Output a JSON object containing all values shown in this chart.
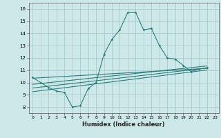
{
  "title": "",
  "xlabel": "Humidex (Indice chaleur)",
  "background_color": "#cce8e8",
  "grid_color": "#aacccc",
  "line_color": "#2d7d7d",
  "xlim": [
    -0.5,
    23.5
  ],
  "ylim": [
    7.5,
    16.5
  ],
  "xticks": [
    0,
    1,
    2,
    3,
    4,
    5,
    6,
    7,
    8,
    9,
    10,
    11,
    12,
    13,
    14,
    15,
    16,
    17,
    18,
    19,
    20,
    21,
    22,
    23
  ],
  "yticks": [
    8,
    9,
    10,
    11,
    12,
    13,
    14,
    15,
    16
  ],
  "main_x": [
    0,
    1,
    2,
    3,
    4,
    5,
    6,
    7,
    8,
    9,
    10,
    11,
    12,
    13,
    14,
    15,
    16,
    17,
    18,
    19,
    20,
    21,
    22
  ],
  "main_y": [
    10.4,
    10.0,
    9.6,
    9.3,
    9.2,
    8.0,
    8.1,
    9.5,
    10.0,
    12.3,
    13.5,
    14.3,
    15.7,
    15.7,
    14.3,
    14.4,
    13.0,
    12.0,
    11.9,
    11.4,
    10.9,
    11.1,
    11.2
  ],
  "trend_lines": [
    {
      "x": [
        0,
        22
      ],
      "y": [
        10.35,
        11.15
      ]
    },
    {
      "x": [
        0,
        22
      ],
      "y": [
        9.85,
        11.35
      ]
    },
    {
      "x": [
        0,
        22
      ],
      "y": [
        9.55,
        11.18
      ]
    },
    {
      "x": [
        0,
        22
      ],
      "y": [
        9.25,
        11.02
      ]
    }
  ]
}
